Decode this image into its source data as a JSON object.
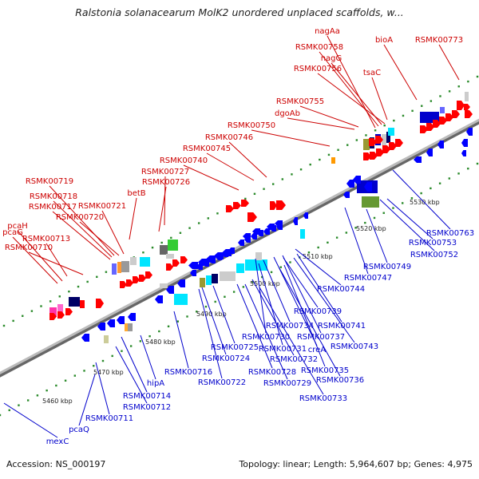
{
  "title": "Ralstonia solanacearum MolK2 unordered unplaced scaffolds, w...",
  "footer": {
    "accession": "Accession: NS_000197",
    "summary": "Topology: linear; Length: 5,964,607 bp; Genes: 4,975"
  },
  "colors": {
    "forward_label": "#cc0000",
    "reverse_label": "#0000cc",
    "forward_gene": "#ff0000",
    "reverse_gene": "#0000ff",
    "backbone": "#888888",
    "tick": "#2a8a2a"
  },
  "kbp_ticks": [
    {
      "text": "5460 kbp"
    },
    {
      "text": "5470 kbp"
    },
    {
      "text": "5480 kbp"
    },
    {
      "text": "5490 kbp"
    },
    {
      "text": "5500 kbp"
    },
    {
      "text": "5510 kbp"
    },
    {
      "text": "5520 kbp"
    },
    {
      "text": "5530 kbp"
    }
  ],
  "forward_labels": [
    "nagAa",
    "RSMK00758",
    "nagG",
    "RSMK00756",
    "tsaC",
    "bioA",
    "RSMK00773",
    "RSMK00755",
    "dgoAb",
    "RSMK00750",
    "RSMK00746",
    "RSMK00745",
    "RSMK00740",
    "RSMK00727",
    "RSMK00726",
    "betB",
    "RSMK00719",
    "RSMK00718",
    "RSMK00721",
    "RSMK00717",
    "RSMK00720",
    "pcaG",
    "pcaH",
    "RSMK00713",
    "RSMK00710"
  ],
  "reverse_labels": [
    "RSMK00763",
    "RSMK00753",
    "RSMK00752",
    "RSMK00749",
    "RSMK00747",
    "RSMK00744",
    "RSMK00739",
    "RSMK00741",
    "RSMK00734",
    "RSMK00737",
    "RSMK00730",
    "RSMK00743",
    "RSMK00725",
    "RSMK00731",
    "creA",
    "RSMK00724",
    "RSMK00732",
    "RSMK00716",
    "RSMK00728",
    "RSMK00735",
    "RSMK00722",
    "RSMK00729",
    "RSMK00736",
    "hipA",
    "RSMK00733",
    "RSMK00714",
    "RSMK00712",
    "RSMK00711",
    "pcaQ",
    "mexC"
  ]
}
